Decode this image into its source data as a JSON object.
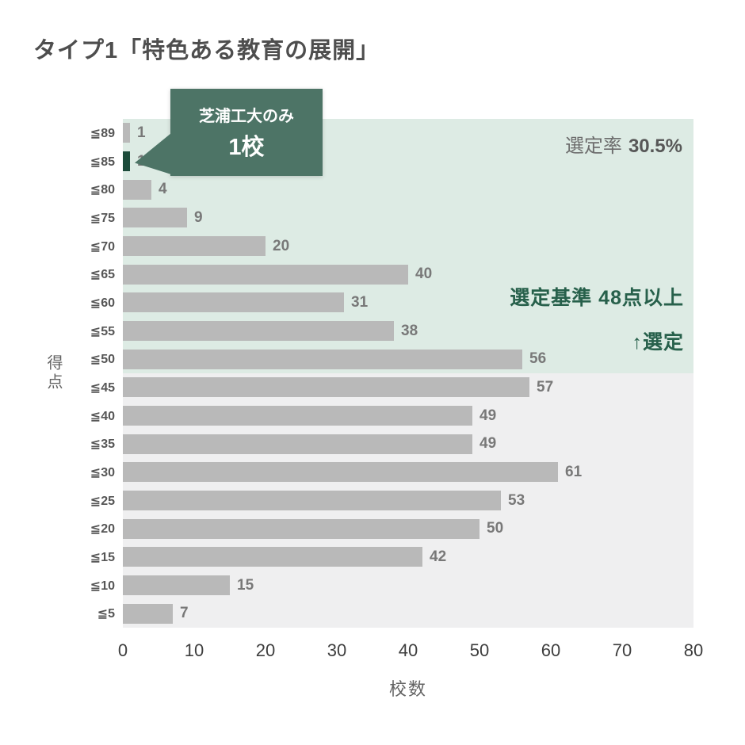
{
  "chart_data": {
    "type": "bar",
    "orientation": "horizontal",
    "title": "タイプ1「特色ある教育の展開」",
    "xlabel": "校数",
    "ylabel": "得点",
    "xlim": [
      0,
      80
    ],
    "x_ticks": [
      0,
      10,
      20,
      30,
      40,
      50,
      60,
      70,
      80
    ],
    "categories": [
      "≦89",
      "≦85",
      "≦80",
      "≦75",
      "≦70",
      "≦65",
      "≦60",
      "≦55",
      "≦50",
      "≦45",
      "≦40",
      "≦35",
      "≦30",
      "≦25",
      "≦20",
      "≦15",
      "≦10",
      "≦5"
    ],
    "values": [
      1,
      1,
      4,
      9,
      20,
      40,
      31,
      38,
      56,
      57,
      49,
      49,
      61,
      53,
      50,
      42,
      15,
      7
    ],
    "highlight_index": 1,
    "highlight_category": "≦85",
    "annotations": {
      "selection_rate_label": "選定率",
      "selection_rate_value": "30.5%",
      "criteria": "選定基準 48点以上",
      "selected_arrow": "↑選定"
    },
    "callout": {
      "line1": "芝浦工大のみ",
      "line2": "1校"
    },
    "regions": [
      {
        "label": "selected",
        "categories": "≦50〜≦89",
        "color": "#ddebe4"
      },
      {
        "label": "unselected",
        "categories": "≦5〜≦45",
        "color": "#efeff0"
      }
    ],
    "colors": {
      "bar": "#b9b9b9",
      "highlight": "#1c4b3a",
      "callout_bg": "#4d7466",
      "region_selected": "#ddebe4",
      "region_rest": "#efeff0",
      "accent_text": "#27604b"
    },
    "legend": false,
    "grid": false
  }
}
